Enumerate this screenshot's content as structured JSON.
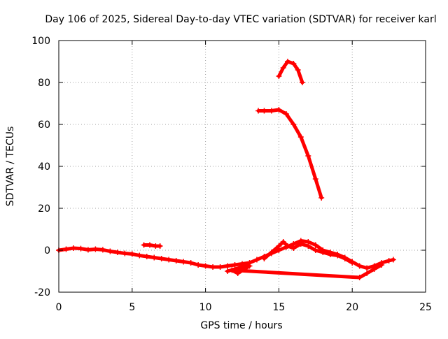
{
  "chart_data": {
    "type": "scatter",
    "title": "Day 106 of 2025, Sidereal Day-to-day VTEC variation (SDTVAR) for receiver karl",
    "xlabel": "GPS time / hours",
    "ylabel": "SDTVAR / TECUs",
    "xlim": [
      0,
      25
    ],
    "ylim": [
      -20,
      100
    ],
    "xticks": [
      "0",
      "5",
      "10",
      "15",
      "20",
      "25"
    ],
    "yticks": [
      "-20",
      "0",
      "20",
      "40",
      "60",
      "80",
      "100"
    ],
    "grid": true,
    "marker_color": "#ff0000",
    "series": [
      {
        "name": "main-trace",
        "points": [
          [
            0,
            0
          ],
          [
            0.5,
            0.5
          ],
          [
            1,
            1
          ],
          [
            1.5,
            0.8
          ],
          [
            2,
            0.2
          ],
          [
            2.5,
            0.5
          ],
          [
            3,
            0.2
          ],
          [
            3.5,
            -0.5
          ],
          [
            4,
            -1
          ],
          [
            4.5,
            -1.5
          ],
          [
            5,
            -1.8
          ],
          [
            5.5,
            -2.5
          ],
          [
            6,
            -3
          ],
          [
            6.5,
            -3.5
          ],
          [
            7,
            -4
          ],
          [
            7.5,
            -4.5
          ],
          [
            8,
            -5
          ],
          [
            8.5,
            -5.5
          ],
          [
            9,
            -6
          ],
          [
            9.5,
            -7
          ],
          [
            10,
            -7.5
          ],
          [
            10.5,
            -8
          ],
          [
            11,
            -8
          ],
          [
            11.5,
            -7.5
          ],
          [
            12,
            -7
          ],
          [
            12.5,
            -6.5
          ],
          [
            13,
            -6
          ],
          [
            13.5,
            -4.5
          ],
          [
            14,
            -3
          ],
          [
            14.5,
            -1.5
          ],
          [
            15,
            0
          ],
          [
            15.5,
            1.5
          ],
          [
            16,
            3
          ],
          [
            16.5,
            4.5
          ],
          [
            17,
            4
          ],
          [
            17.5,
            2.5
          ],
          [
            18,
            0
          ],
          [
            18.5,
            -1
          ],
          [
            19,
            -2
          ],
          [
            19.5,
            -3.5
          ],
          [
            20,
            -5.5
          ],
          [
            20.5,
            -7.5
          ],
          [
            21,
            -8.5
          ],
          [
            21.5,
            -7.5
          ],
          [
            22,
            -6
          ],
          [
            22.5,
            -5
          ],
          [
            22.8,
            -4.5
          ]
        ]
      },
      {
        "name": "secondary-trace",
        "points": [
          [
            14,
            -4
          ],
          [
            14.5,
            -1
          ],
          [
            15,
            2
          ],
          [
            15.3,
            4
          ],
          [
            15.6,
            2
          ],
          [
            16,
            1
          ],
          [
            16.5,
            3
          ],
          [
            17,
            2
          ],
          [
            17.5,
            0
          ],
          [
            18,
            -1
          ],
          [
            18.5,
            -2
          ],
          [
            19,
            -2.5
          ],
          [
            19.5,
            -4
          ],
          [
            20,
            -6
          ]
        ]
      },
      {
        "name": "scatter-low",
        "points": [
          [
            11.5,
            -10
          ],
          [
            12,
            -9
          ],
          [
            12.5,
            -8
          ],
          [
            13,
            -7.5
          ],
          [
            12.2,
            -11
          ],
          [
            11.8,
            -9.5
          ],
          [
            20.5,
            -13
          ],
          [
            21,
            -11
          ],
          [
            21.5,
            -9
          ],
          [
            22,
            -7
          ]
        ]
      },
      {
        "name": "short-segment",
        "points": [
          [
            5.8,
            2.5
          ],
          [
            6.2,
            2.5
          ],
          [
            6.6,
            2
          ],
          [
            6.9,
            2
          ]
        ]
      },
      {
        "name": "falling-arc",
        "points": [
          [
            13.6,
            66.5
          ],
          [
            14,
            66.5
          ],
          [
            14.5,
            66.5
          ],
          [
            15,
            67
          ],
          [
            15.5,
            65
          ],
          [
            16,
            60
          ],
          [
            16.5,
            54
          ],
          [
            17,
            45
          ],
          [
            17.5,
            34
          ],
          [
            17.9,
            25
          ]
        ]
      },
      {
        "name": "peak-arc",
        "points": [
          [
            15,
            83
          ],
          [
            15.3,
            87
          ],
          [
            15.6,
            90
          ],
          [
            16,
            89
          ],
          [
            16.3,
            86
          ],
          [
            16.6,
            80
          ]
        ]
      }
    ]
  }
}
